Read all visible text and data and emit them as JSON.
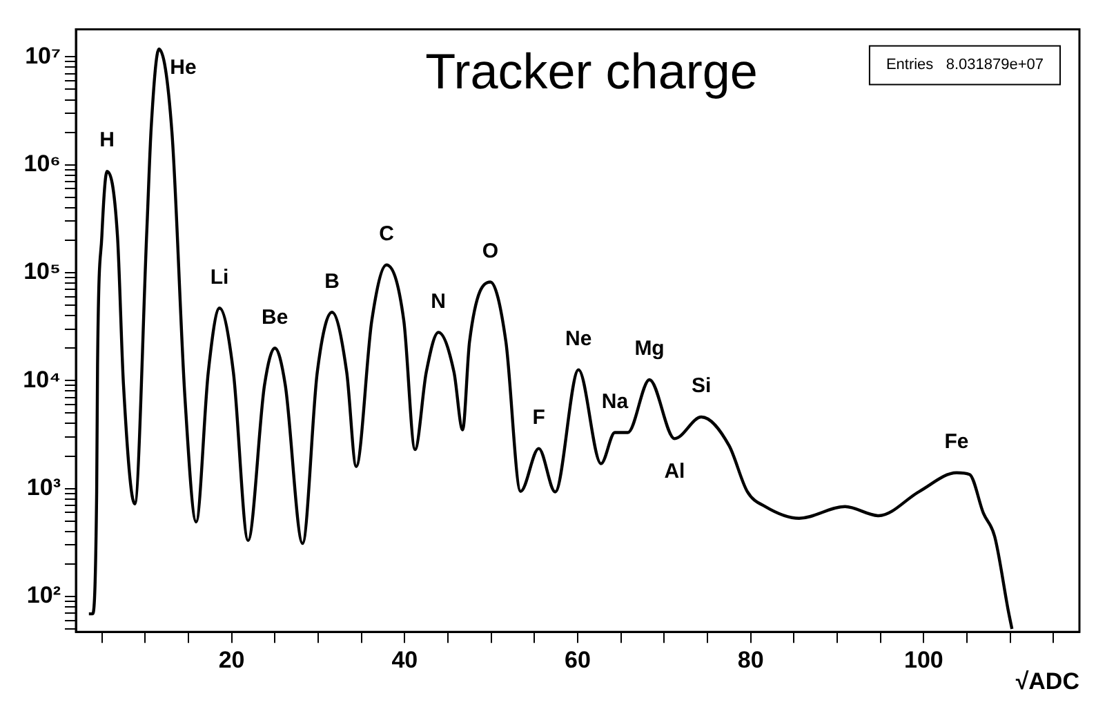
{
  "chart_data": {
    "type": "line",
    "title": "Tracker charge",
    "xlabel": "√ADC",
    "log": "y",
    "grid": false,
    "legend": false,
    "marker": "none",
    "line_style": "solid",
    "color": "#000000",
    "x": [
      3.5,
      3.9,
      4.4,
      4.5,
      5.0,
      5.6,
      6.8,
      7.5,
      8.8,
      10.2,
      10.7,
      11.6,
      13.1,
      14.6,
      15.9,
      17.3,
      18.6,
      20.2,
      21.9,
      23.8,
      25.0,
      26.2,
      28.2,
      29.9,
      31.6,
      33.3,
      34.4,
      36.2,
      37.9,
      39.9,
      41.2,
      42.5,
      43.9,
      45.7,
      46.7,
      47.5,
      49.9,
      51.7,
      53.4,
      55.5,
      57.4,
      60.1,
      62.7,
      64.3,
      65.8,
      68.3,
      71.2,
      74.3,
      77.5,
      79.6,
      81.7,
      85.6,
      90.9,
      94.8,
      99.5,
      103.8,
      105.3,
      106.9,
      108.2,
      109.8,
      110.2
    ],
    "values": [
      69,
      69,
      940,
      14000,
      220000,
      870000,
      220000,
      9100,
      720,
      250000,
      2200000,
      11800000,
      2000000,
      7000,
      490,
      12000,
      47000,
      12000,
      330,
      9100,
      20000,
      9100,
      310,
      12000,
      43000,
      12000,
      1600,
      36000,
      118000,
      36000,
      2300,
      12000,
      28000,
      12000,
      3500,
      23000,
      82000,
      23000,
      940,
      2350,
      930,
      12600,
      1700,
      3300,
      3300,
      10200,
      2900,
      4600,
      2500,
      940,
      680,
      530,
      680,
      560,
      940,
      1400,
      1350,
      590,
      360,
      72,
      50
    ],
    "xlim": [
      2,
      118
    ],
    "xticks": [
      {
        "value": 5,
        "label": null
      },
      {
        "value": 10,
        "label": null
      },
      {
        "value": 15,
        "label": null
      },
      20,
      {
        "value": 25,
        "label": null
      },
      {
        "value": 30,
        "label": null
      },
      {
        "value": 35,
        "label": null
      },
      40,
      {
        "value": 45,
        "label": null
      },
      {
        "value": 50,
        "label": null
      },
      {
        "value": 55,
        "label": null
      },
      60,
      {
        "value": 65,
        "label": null
      },
      {
        "value": 70,
        "label": null
      },
      {
        "value": 75,
        "label": null
      },
      80,
      {
        "value": 85,
        "label": null
      },
      {
        "value": 90,
        "label": null
      },
      {
        "value": 95,
        "label": null
      },
      100,
      {
        "value": 105,
        "label": null
      },
      {
        "value": 110,
        "label": null
      },
      {
        "value": 115,
        "label": null
      }
    ],
    "ylim": [
      47,
      18000000
    ],
    "yticks": [
      {
        "value": 50,
        "label": null
      },
      {
        "value": 60,
        "label": null
      },
      {
        "value": 70,
        "label": null
      },
      {
        "value": 80,
        "label": null
      },
      {
        "value": 90,
        "label": null
      },
      {
        "value": 100,
        "label": "10²"
      },
      {
        "value": 200,
        "label": null
      },
      {
        "value": 300,
        "label": null
      },
      {
        "value": 400,
        "label": null
      },
      {
        "value": 500,
        "label": null
      },
      {
        "value": 600,
        "label": null
      },
      {
        "value": 700,
        "label": null
      },
      {
        "value": 800,
        "label": null
      },
      {
        "value": 900,
        "label": null
      },
      {
        "value": 1000,
        "label": "10³"
      },
      {
        "value": 2000,
        "label": null
      },
      {
        "value": 3000,
        "label": null
      },
      {
        "value": 4000,
        "label": null
      },
      {
        "value": 5000,
        "label": null
      },
      {
        "value": 6000,
        "label": null
      },
      {
        "value": 7000,
        "label": null
      },
      {
        "value": 8000,
        "label": null
      },
      {
        "value": 9000,
        "label": null
      },
      {
        "value": 10000,
        "label": "10⁴"
      },
      {
        "value": 20000,
        "label": null
      },
      {
        "value": 30000,
        "label": null
      },
      {
        "value": 40000,
        "label": null
      },
      {
        "value": 50000,
        "label": null
      },
      {
        "value": 60000,
        "label": null
      },
      {
        "value": 70000,
        "label": null
      },
      {
        "value": 80000,
        "label": null
      },
      {
        "value": 90000,
        "label": null
      },
      {
        "value": 100000,
        "label": "10⁵"
      },
      {
        "value": 200000,
        "label": null
      },
      {
        "value": 300000,
        "label": null
      },
      {
        "value": 400000,
        "label": null
      },
      {
        "value": 500000,
        "label": null
      },
      {
        "value": 600000,
        "label": null
      },
      {
        "value": 700000,
        "label": null
      },
      {
        "value": 800000,
        "label": null
      },
      {
        "value": 900000,
        "label": null
      },
      {
        "value": 1000000,
        "label": "10⁶"
      },
      {
        "value": 2000000,
        "label": null
      },
      {
        "value": 3000000,
        "label": null
      },
      {
        "value": 4000000,
        "label": null
      },
      {
        "value": 5000000,
        "label": null
      },
      {
        "value": 6000000,
        "label": null
      },
      {
        "value": 7000000,
        "label": null
      },
      {
        "value": 8000000,
        "label": null
      },
      {
        "value": 9000000,
        "label": null
      },
      {
        "value": 10000000,
        "label": "10⁷"
      }
    ],
    "annotations": [
      "Entries   8.031879e+07",
      {
        "text": "H",
        "x": 5.6,
        "y": 870000
      },
      {
        "text": "He",
        "x": 11.6,
        "y": 11800000
      },
      {
        "text": "Li",
        "x": 18.6,
        "y": 47000
      },
      {
        "text": "Be",
        "x": 25.0,
        "y": 20000
      },
      {
        "text": "B",
        "x": 31.6,
        "y": 43000
      },
      {
        "text": "C",
        "x": 37.9,
        "y": 118000
      },
      {
        "text": "N",
        "x": 43.9,
        "y": 28000
      },
      {
        "text": "O",
        "x": 49.9,
        "y": 82000
      },
      {
        "text": "F",
        "x": 55.5,
        "y": 2350
      },
      {
        "text": "Ne",
        "x": 60.1,
        "y": 12600
      },
      {
        "text": "Na",
        "x": 64.3,
        "y": 3300
      },
      {
        "text": "Mg",
        "x": 68.3,
        "y": 10200
      },
      {
        "text": "Si",
        "x": 74.3,
        "y": 4600
      },
      {
        "text": "Al",
        "x": 71.2,
        "y": 2900
      },
      {
        "text": "Fe",
        "x": 103.8,
        "y": 1400
      }
    ]
  }
}
